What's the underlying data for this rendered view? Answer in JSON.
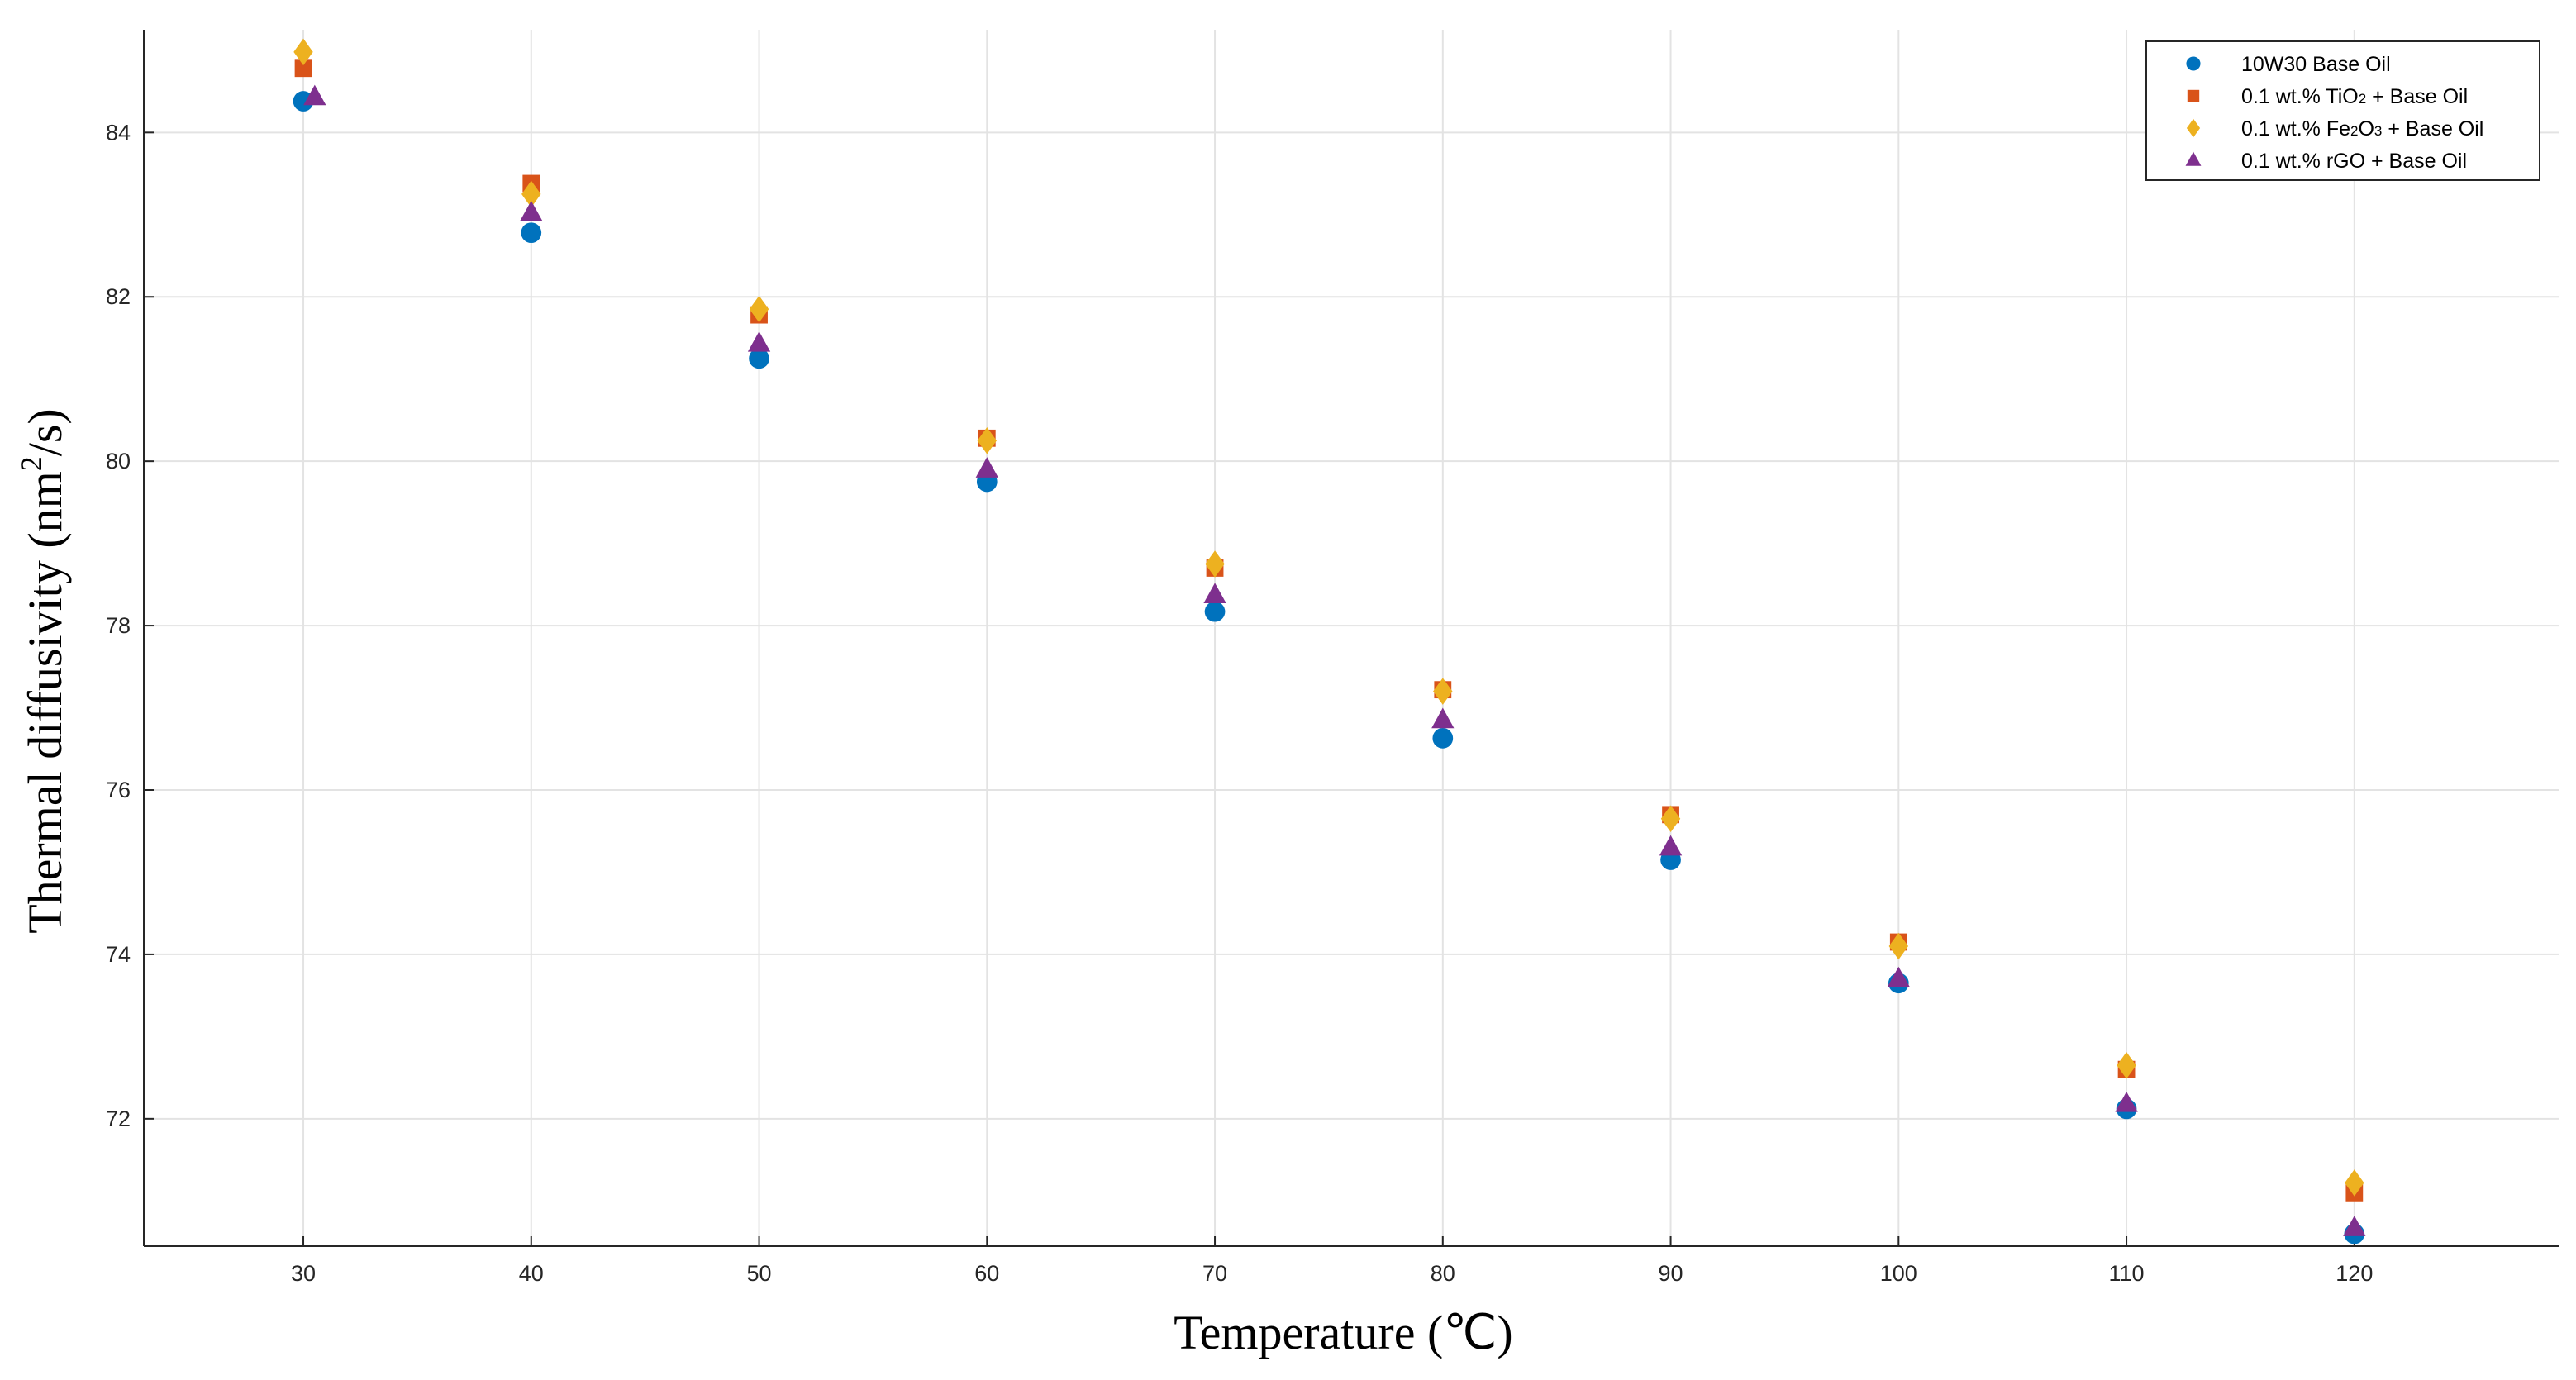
{
  "chart_data": {
    "type": "scatter",
    "title": "",
    "xlabel": "Temperature (℃)",
    "ylabel_parts": [
      "Thermal diffusivity (nm",
      "2",
      "/s)"
    ],
    "xlim": [
      23,
      129
    ],
    "ylim": [
      70.45,
      85.25
    ],
    "xticks": [
      30,
      40,
      50,
      60,
      70,
      80,
      90,
      100,
      110,
      120
    ],
    "yticks": [
      72,
      74,
      76,
      78,
      80,
      82,
      84
    ],
    "grid": true,
    "legend_position": "top-right",
    "series": [
      {
        "name_parts": [
          "10W30 Base Oil"
        ],
        "marker": "circle",
        "color": "#0072BD",
        "x": [
          30,
          40,
          50,
          60,
          70,
          80,
          90,
          100,
          110,
          120
        ],
        "y": [
          84.38,
          82.78,
          81.25,
          79.75,
          78.17,
          76.63,
          75.15,
          73.65,
          72.12,
          70.6
        ]
      },
      {
        "name_parts": [
          "0.1 wt.% TiO",
          "2",
          " + Base Oil"
        ],
        "marker": "square",
        "color": "#D95319",
        "x": [
          30,
          40,
          50,
          60,
          70,
          80,
          90,
          100,
          110,
          120
        ],
        "y": [
          84.78,
          83.38,
          81.78,
          80.28,
          78.7,
          77.22,
          75.7,
          74.15,
          72.6,
          71.1
        ]
      },
      {
        "name_parts": [
          "0.1 wt.% Fe",
          "2",
          "O",
          "3",
          " + Base Oil"
        ],
        "marker": "diamond",
        "color": "#EDB120",
        "x": [
          30,
          40,
          50,
          60,
          70,
          80,
          90,
          100,
          110,
          120
        ],
        "y": [
          84.98,
          83.25,
          81.85,
          80.25,
          78.75,
          77.2,
          75.65,
          74.1,
          72.65,
          71.22
        ]
      },
      {
        "name_parts": [
          "0.1 wt.% rGO + Base Oil"
        ],
        "marker": "triangle",
        "color": "#7E2F8E",
        "x": [
          30.5,
          40,
          50,
          60,
          70,
          80,
          90,
          100,
          110,
          120
        ],
        "y": [
          84.43,
          83.02,
          81.43,
          79.9,
          78.37,
          76.85,
          75.3,
          73.7,
          72.18,
          70.67
        ]
      }
    ]
  }
}
